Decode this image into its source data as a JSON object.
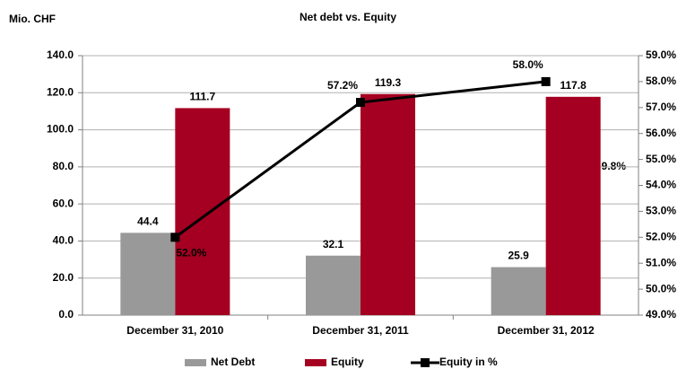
{
  "chart_data": {
    "type": "bar",
    "title": "Net debt vs. Equity",
    "y_label": "Mio. CHF",
    "categories": [
      "December 31, 2010",
      "December 31, 2011",
      "December 31, 2012"
    ],
    "series": [
      {
        "name": "Net Debt",
        "color": "#999999",
        "values": [
          44.4,
          32.1,
          25.9
        ]
      },
      {
        "name": "Equity",
        "color": "#a50021",
        "values": [
          111.7,
          119.3,
          117.8
        ]
      },
      {
        "name": "Equity in %",
        "type": "line",
        "axis": "y2",
        "color": "#000000",
        "values": [
          52.0,
          57.2,
          58.0
        ],
        "value_labels": [
          "52.0%",
          "57.2%",
          "58.0%"
        ]
      }
    ],
    "annotations": [
      "9.8%"
    ],
    "ylim": [
      0,
      140
    ],
    "yticks": [
      {
        "value": 0,
        "label": "0.0"
      },
      {
        "value": 20,
        "label": "20.0"
      },
      {
        "value": 40,
        "label": "40.0"
      },
      {
        "value": 60,
        "label": "60.0"
      },
      {
        "value": 80,
        "label": "80.0"
      },
      {
        "value": 100,
        "label": "100.0"
      },
      {
        "value": 120,
        "label": "120.0"
      },
      {
        "value": 140,
        "label": "140.0"
      }
    ],
    "y2lim": [
      49,
      59
    ],
    "y2ticks": [
      {
        "value": 49,
        "label": "49.0%"
      },
      {
        "value": 50,
        "label": "50.0%"
      },
      {
        "value": 51,
        "label": "51.0%"
      },
      {
        "value": 52,
        "label": "52.0%"
      },
      {
        "value": 53,
        "label": "53.0%"
      },
      {
        "value": 54,
        "label": "54.0%"
      },
      {
        "value": 55,
        "label": "55.0%"
      },
      {
        "value": 56,
        "label": "56.0%"
      },
      {
        "value": 57,
        "label": "57.0%"
      },
      {
        "value": 58,
        "label": "58.0%"
      },
      {
        "value": 59,
        "label": "59.0%"
      }
    ],
    "grid": true,
    "legend": "bottom"
  }
}
